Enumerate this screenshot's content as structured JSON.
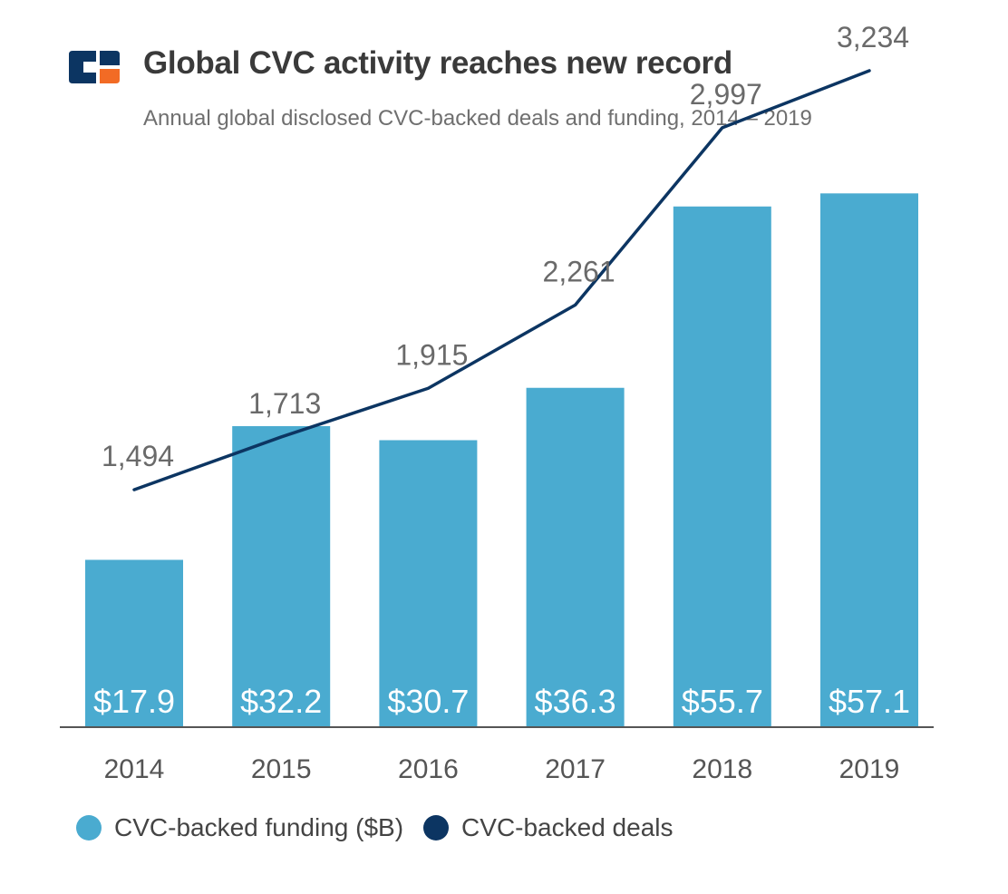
{
  "header": {
    "title": "Global CVC activity reaches new record",
    "subtitle": "Annual global disclosed CVC-backed deals and funding, 2014 – 2019"
  },
  "colors": {
    "bar": "#4aabd0",
    "line": "#0c3562",
    "logo_navy": "#0c3562",
    "logo_orange": "#f26b25",
    "axis": "#555555",
    "label": "#6a6a6a"
  },
  "chart_data": {
    "type": "bar",
    "categories": [
      "2014",
      "2015",
      "2016",
      "2017",
      "2018",
      "2019"
    ],
    "series": [
      {
        "name": "CVC-backed funding ($B)",
        "type": "bar",
        "values": [
          17.9,
          32.2,
          30.7,
          36.3,
          55.7,
          57.1
        ],
        "labels": [
          "$17.9",
          "$32.2",
          "$30.7",
          "$36.3",
          "$55.7",
          "$57.1"
        ]
      },
      {
        "name": "CVC-backed deals",
        "type": "line",
        "values": [
          1494,
          1713,
          1915,
          2261,
          2997,
          3234
        ],
        "labels": [
          "1,494",
          "1,713",
          "1,915",
          "2,261",
          "2,997",
          "3,234"
        ]
      }
    ],
    "grid": false,
    "legend": "bottom-left"
  }
}
